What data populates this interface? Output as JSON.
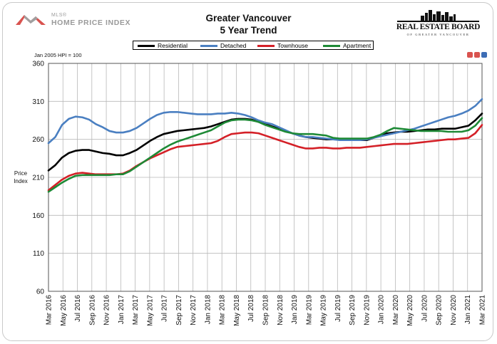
{
  "header": {
    "left_logo_small": "MLS®",
    "left_logo_big": "HOME PRICE INDEX",
    "title_line1": "Greater Vancouver",
    "title_line2": "5 Year Trend",
    "right_logo_name": "REAL ESTATE BOARD",
    "right_logo_sub": "OF GREATER VANCOUVER"
  },
  "colors": {
    "residential": "#000000",
    "detached": "#4a7fc1",
    "townhouse": "#d42027",
    "apartment": "#1e8a36",
    "grid": "#b8b8b8"
  },
  "chart_data": {
    "type": "line",
    "title": "Greater Vancouver 5 Year Trend",
    "note": "Jan 2005 HPI = 100",
    "ylabel": "Price Index",
    "ylim": [
      60,
      360
    ],
    "yticks": [
      60,
      110,
      160,
      210,
      260,
      310,
      360
    ],
    "grid": true,
    "legend": "top",
    "x_tick_labels": [
      "Mar 2016",
      "May 2016",
      "Jul 2016",
      "Sep 2016",
      "Nov 2016",
      "Jan 2017",
      "Mar 2017",
      "May 2017",
      "Jul 2017",
      "Sep 2017",
      "Nov 2017",
      "Jan 2018",
      "Mar 2018",
      "May 2018",
      "Jul 2018",
      "Sep 2018",
      "Nov 2018",
      "Jan 2019",
      "Mar 2019",
      "May 2019",
      "Jul 2019",
      "Sep 2019",
      "Nov 2019",
      "Jan 2020",
      "Mar 2020",
      "May 2020",
      "Jul 2020",
      "Sep 2020",
      "Nov 2020",
      "Jan 2021",
      "Mar 2021"
    ],
    "series": [
      {
        "name": "Residential",
        "key": "residential",
        "values": [
          219,
          226,
          236,
          242,
          245,
          246,
          246,
          244,
          242,
          241,
          239,
          239,
          242,
          246,
          252,
          258,
          263,
          267,
          269,
          271,
          272,
          273,
          274,
          275,
          277,
          280,
          283,
          286,
          287,
          287,
          286,
          283,
          280,
          277,
          274,
          271,
          268,
          265,
          263,
          262,
          261,
          260,
          260,
          260,
          259,
          259,
          259,
          259,
          262,
          265,
          268,
          269,
          270,
          270,
          271,
          272,
          273,
          273,
          274,
          274,
          274,
          276,
          278,
          285,
          294
        ]
      },
      {
        "name": "Detached",
        "key": "detached",
        "values": [
          255,
          263,
          279,
          287,
          290,
          289,
          286,
          280,
          276,
          271,
          269,
          269,
          271,
          275,
          281,
          287,
          292,
          295,
          296,
          296,
          295,
          294,
          293,
          293,
          293,
          294,
          294,
          295,
          294,
          292,
          289,
          285,
          282,
          280,
          276,
          272,
          268,
          265,
          263,
          263,
          262,
          261,
          260,
          259,
          259,
          259,
          259,
          260,
          262,
          264,
          266,
          268,
          270,
          272,
          274,
          277,
          280,
          283,
          286,
          289,
          291,
          294,
          298,
          304,
          313
        ]
      },
      {
        "name": "Townhouse",
        "key": "townhouse",
        "values": [
          193,
          200,
          207,
          212,
          215,
          216,
          215,
          214,
          214,
          214,
          214,
          215,
          219,
          225,
          230,
          235,
          239,
          243,
          247,
          250,
          251,
          252,
          253,
          254,
          255,
          258,
          263,
          267,
          268,
          269,
          269,
          268,
          265,
          262,
          259,
          256,
          253,
          250,
          248,
          248,
          249,
          249,
          248,
          248,
          249,
          249,
          249,
          250,
          251,
          252,
          253,
          254,
          254,
          254,
          255,
          256,
          257,
          258,
          259,
          260,
          260,
          261,
          262,
          268,
          279
        ]
      },
      {
        "name": "Apartment",
        "key": "apartment",
        "values": [
          191,
          197,
          203,
          208,
          212,
          213,
          213,
          213,
          213,
          213,
          214,
          214,
          218,
          224,
          230,
          236,
          242,
          248,
          253,
          257,
          260,
          263,
          266,
          269,
          272,
          277,
          282,
          285,
          286,
          286,
          285,
          283,
          279,
          276,
          273,
          270,
          268,
          267,
          267,
          267,
          266,
          265,
          262,
          261,
          261,
          261,
          261,
          261,
          263,
          266,
          271,
          275,
          274,
          273,
          272,
          271,
          271,
          271,
          271,
          270,
          270,
          270,
          272,
          278,
          288
        ]
      }
    ]
  },
  "legend_items": [
    {
      "label": "Residential"
    },
    {
      "label": "Detached"
    },
    {
      "label": "Townhouse"
    },
    {
      "label": "Apartment"
    }
  ]
}
